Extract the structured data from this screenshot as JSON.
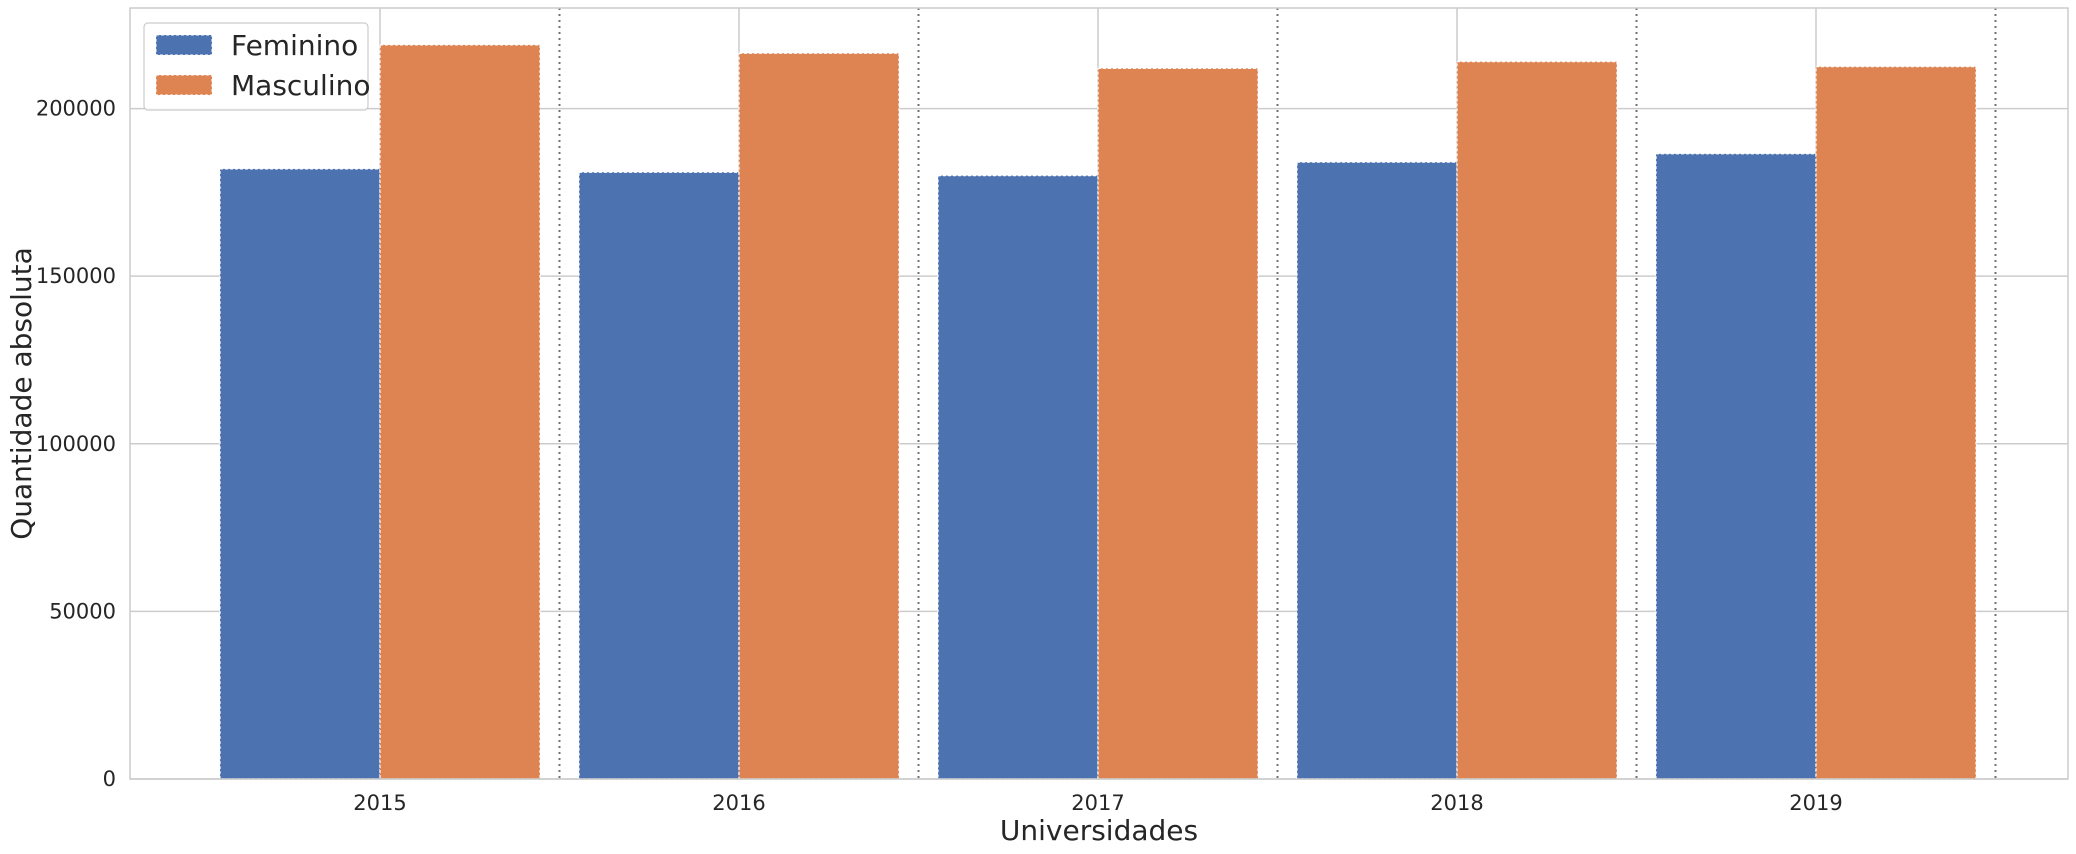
{
  "chart_data": {
    "type": "bar",
    "categories": [
      "2015",
      "2016",
      "2017",
      "2018",
      "2019"
    ],
    "series": [
      {
        "name": "Feminino",
        "values": [
          182000,
          181000,
          180000,
          184000,
          186500
        ],
        "color": "#4C72B0"
      },
      {
        "name": "Masculino",
        "values": [
          219000,
          216500,
          212000,
          214000,
          212500
        ],
        "color": "#DD8452"
      }
    ],
    "xlabel": "Universidades",
    "ylabel": "Quantidade absoluta",
    "ylim": [
      0,
      230000
    ],
    "yticks": [
      0,
      50000,
      100000,
      150000,
      200000
    ],
    "ytick_labels": [
      "0",
      "50000",
      "100000",
      "150000",
      "200000"
    ],
    "grid": true,
    "legend_position": "upper-left",
    "category_separators": "dotted"
  }
}
